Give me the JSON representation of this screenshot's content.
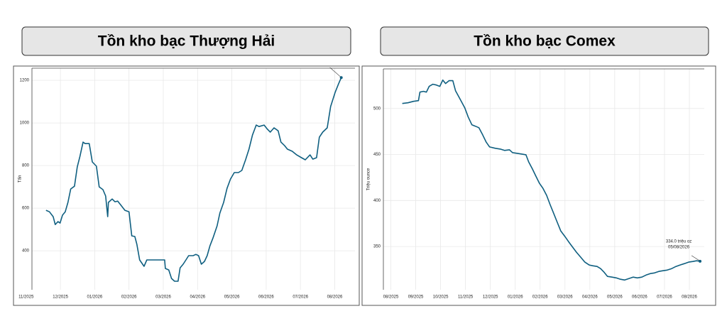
{
  "chart_data": [
    {
      "type": "line",
      "title": "Tồn kho bạc Thượng Hải",
      "ylabel": "Tấn",
      "color": "#0f5f80",
      "grid": true,
      "xlim": [
        0.17,
        9.59
      ],
      "ylim": [
        217,
        1257
      ],
      "xticks": [
        {
          "value": 0,
          "label": "11/2025"
        },
        {
          "value": 1,
          "label": "12/2025"
        },
        {
          "value": 2,
          "label": "01/2026"
        },
        {
          "value": 3,
          "label": "02/2026"
        },
        {
          "value": 4,
          "label": "03/2026"
        },
        {
          "value": 5,
          "label": "04/2026"
        },
        {
          "value": 6,
          "label": "05/2026"
        },
        {
          "value": 7,
          "label": "06/2026"
        },
        {
          "value": 8,
          "label": "07/2026"
        },
        {
          "value": 9,
          "label": "08/2026"
        }
      ],
      "yticks": [
        400,
        600,
        800,
        1000,
        1200
      ],
      "x": [
        0.58,
        0.68,
        0.79,
        0.85,
        0.93,
        0.99,
        1.06,
        1.14,
        1.22,
        1.3,
        1.41,
        1.49,
        1.57,
        1.66,
        1.72,
        1.84,
        1.93,
        2.05,
        2.13,
        2.24,
        2.32,
        2.38,
        2.4,
        2.51,
        2.59,
        2.67,
        2.75,
        2.88,
        3.0,
        3.08,
        3.17,
        3.23,
        3.31,
        3.44,
        3.52,
        3.6,
        3.73,
        3.89,
        4.04,
        4.06,
        4.16,
        4.24,
        4.33,
        4.43,
        4.49,
        4.58,
        4.66,
        4.74,
        4.87,
        4.95,
        5.03,
        5.11,
        5.2,
        5.28,
        5.36,
        5.45,
        5.57,
        5.65,
        5.76,
        5.86,
        5.96,
        6.07,
        6.19,
        6.29,
        6.4,
        6.5,
        6.6,
        6.71,
        6.79,
        6.94,
        7.04,
        7.12,
        7.23,
        7.35,
        7.43,
        7.54,
        7.62,
        7.76,
        7.89,
        8.03,
        8.14,
        8.28,
        8.36,
        8.47,
        8.55,
        8.65,
        8.78,
        8.88,
        9.01,
        9.11,
        9.19
      ],
      "values": [
        590,
        583,
        560,
        523,
        537,
        530,
        567,
        583,
        627,
        690,
        703,
        793,
        843,
        910,
        903,
        903,
        817,
        797,
        700,
        687,
        657,
        560,
        627,
        643,
        630,
        633,
        617,
        590,
        583,
        470,
        467,
        430,
        357,
        327,
        357,
        357,
        357,
        357,
        357,
        317,
        310,
        270,
        257,
        257,
        320,
        337,
        357,
        377,
        377,
        383,
        377,
        337,
        350,
        377,
        423,
        460,
        517,
        577,
        627,
        693,
        737,
        767,
        767,
        777,
        827,
        877,
        943,
        990,
        983,
        990,
        970,
        957,
        977,
        963,
        910,
        893,
        877,
        867,
        850,
        837,
        827,
        850,
        830,
        837,
        933,
        957,
        977,
        1077,
        1143,
        1183,
        1213
      ]
    },
    {
      "type": "line",
      "title": "Tồn kho bạc Comex",
      "ylabel": "Triệu ounce",
      "color": "#0f5f80",
      "grid": true,
      "annotation": [
        "334.0 triệu oz",
        "05/08/2026"
      ],
      "xlim": [
        -0.3,
        12.6
      ],
      "ylim": [
        303,
        543
      ],
      "xticks": [
        {
          "value": 0,
          "label": "08/2025"
        },
        {
          "value": 1,
          "label": "09/2025"
        },
        {
          "value": 2,
          "label": "10/2025"
        },
        {
          "value": 3,
          "label": "11/2025"
        },
        {
          "value": 4,
          "label": "12/2025"
        },
        {
          "value": 5,
          "label": "01/2026"
        },
        {
          "value": 6,
          "label": "02/2026"
        },
        {
          "value": 7,
          "label": "03/2026"
        },
        {
          "value": 8,
          "label": "04/2026"
        },
        {
          "value": 9,
          "label": "05/2026"
        },
        {
          "value": 10,
          "label": "06/2026"
        },
        {
          "value": 11,
          "label": "07/2026"
        },
        {
          "value": 12,
          "label": "08/2026"
        }
      ],
      "yticks": [
        350,
        400,
        450,
        500
      ],
      "x": [
        0.46,
        0.69,
        0.91,
        1.11,
        1.17,
        1.31,
        1.43,
        1.54,
        1.69,
        1.83,
        1.97,
        2.09,
        2.2,
        2.34,
        2.49,
        2.6,
        2.77,
        2.97,
        3.11,
        3.26,
        3.4,
        3.54,
        3.69,
        3.83,
        3.97,
        4.2,
        4.4,
        4.57,
        4.77,
        4.89,
        5.06,
        5.26,
        5.43,
        5.54,
        5.69,
        5.83,
        5.97,
        6.11,
        6.26,
        6.4,
        6.54,
        6.69,
        6.83,
        7.0,
        7.14,
        7.29,
        7.46,
        7.63,
        7.8,
        7.97,
        8.11,
        8.29,
        8.43,
        8.57,
        8.71,
        8.89,
        9.06,
        9.23,
        9.4,
        9.57,
        9.74,
        9.91,
        10.09,
        10.26,
        10.43,
        10.6,
        10.77,
        10.94,
        11.11,
        11.29,
        11.46,
        11.63,
        11.8,
        11.97,
        12.14,
        12.29,
        12.43
      ],
      "values": [
        505.4,
        506.2,
        507.7,
        508.5,
        517.8,
        518.6,
        517.8,
        524.0,
        526.3,
        525.5,
        524.0,
        530.9,
        527.1,
        530.2,
        530.2,
        519.3,
        510.8,
        500.8,
        490.7,
        482.2,
        480.7,
        479.1,
        471.4,
        463.6,
        458.2,
        456.7,
        455.9,
        454.4,
        455.1,
        452.0,
        451.3,
        450.5,
        449.7,
        442.0,
        434.3,
        426.5,
        418.8,
        413.4,
        405.6,
        395.6,
        386.3,
        376.3,
        367.0,
        360.8,
        355.4,
        350.0,
        343.8,
        338.4,
        333.0,
        329.9,
        329.1,
        328.3,
        326.0,
        322.1,
        317.5,
        316.7,
        315.9,
        314.4,
        313.6,
        315.2,
        316.7,
        315.9,
        316.7,
        319.0,
        320.6,
        321.3,
        322.9,
        323.7,
        324.4,
        326.0,
        328.3,
        329.9,
        331.4,
        333.0,
        333.7,
        334.5,
        334.0
      ]
    }
  ]
}
